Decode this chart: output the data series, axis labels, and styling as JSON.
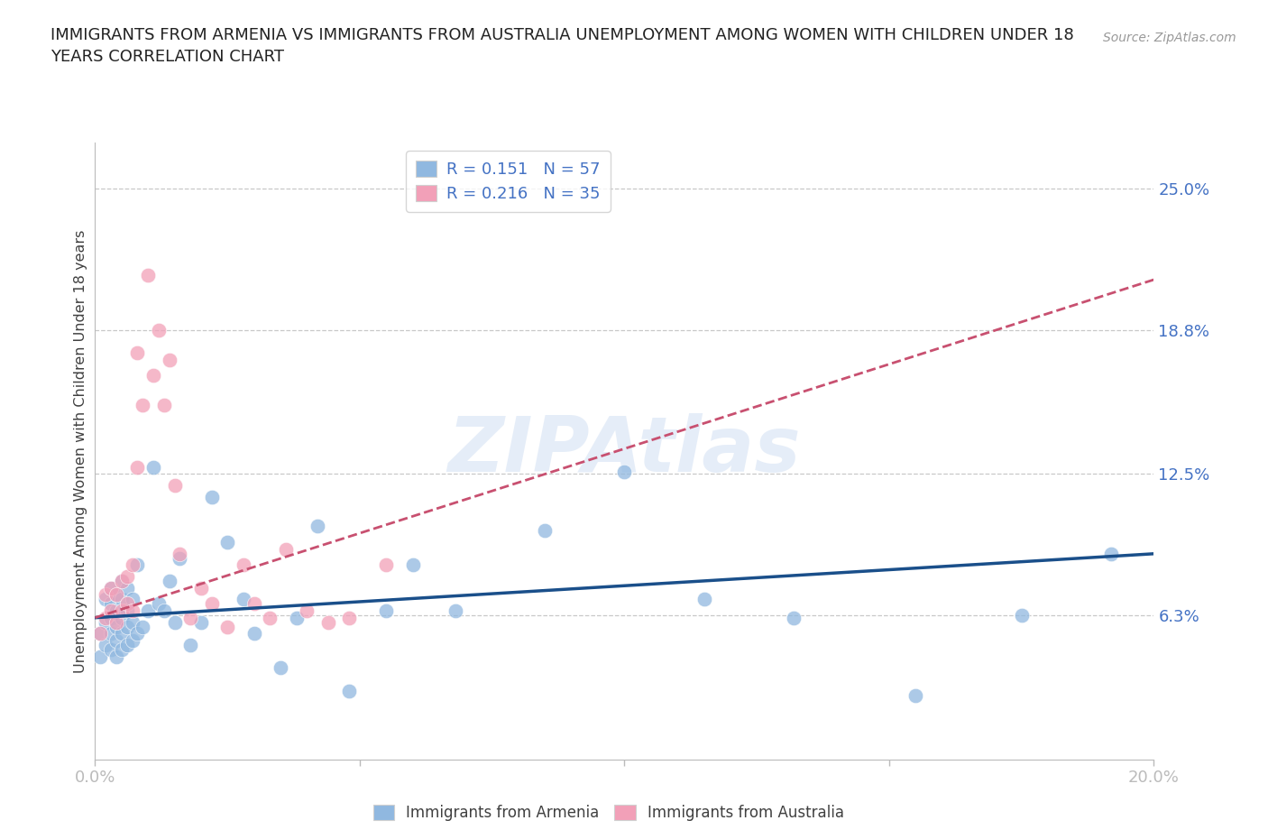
{
  "title_line1": "IMMIGRANTS FROM ARMENIA VS IMMIGRANTS FROM AUSTRALIA UNEMPLOYMENT AMONG WOMEN WITH CHILDREN UNDER 18",
  "title_line2": "YEARS CORRELATION CHART",
  "source": "Source: ZipAtlas.com",
  "ylabel": "Unemployment Among Women with Children Under 18 years",
  "xlim": [
    0.0,
    0.2
  ],
  "ylim": [
    0.0,
    0.27
  ],
  "ytick_vals": [
    0.063,
    0.125,
    0.188,
    0.25
  ],
  "ytick_labels": [
    "6.3%",
    "12.5%",
    "18.8%",
    "25.0%"
  ],
  "xtick_vals": [
    0.0,
    0.05,
    0.1,
    0.15,
    0.2
  ],
  "xtick_labels": [
    "0.0%",
    "",
    "",
    "",
    "20.0%"
  ],
  "watermark": "ZIPAtlas",
  "legend_r1": "R = 0.151   N = 57",
  "legend_r2": "R = 0.216   N = 35",
  "color_armenia": "#90B8E0",
  "color_australia": "#F2A0B8",
  "color_trend_armenia": "#1A4F8A",
  "color_trend_australia": "#C85070",
  "color_blue": "#4472C4",
  "color_text": "#404040",
  "color_grid": "#C8C8C8",
  "armenia_x": [
    0.001,
    0.001,
    0.002,
    0.002,
    0.002,
    0.003,
    0.003,
    0.003,
    0.003,
    0.003,
    0.004,
    0.004,
    0.004,
    0.004,
    0.004,
    0.005,
    0.005,
    0.005,
    0.005,
    0.005,
    0.006,
    0.006,
    0.006,
    0.006,
    0.007,
    0.007,
    0.007,
    0.008,
    0.008,
    0.009,
    0.01,
    0.011,
    0.012,
    0.013,
    0.014,
    0.015,
    0.016,
    0.018,
    0.02,
    0.022,
    0.025,
    0.028,
    0.03,
    0.035,
    0.038,
    0.042,
    0.048,
    0.055,
    0.06,
    0.068,
    0.085,
    0.1,
    0.115,
    0.132,
    0.155,
    0.175,
    0.192
  ],
  "armenia_y": [
    0.055,
    0.045,
    0.05,
    0.06,
    0.07,
    0.048,
    0.055,
    0.062,
    0.068,
    0.075,
    0.045,
    0.052,
    0.058,
    0.065,
    0.072,
    0.048,
    0.055,
    0.062,
    0.07,
    0.078,
    0.05,
    0.058,
    0.065,
    0.075,
    0.052,
    0.06,
    0.07,
    0.055,
    0.085,
    0.058,
    0.065,
    0.128,
    0.068,
    0.065,
    0.078,
    0.06,
    0.088,
    0.05,
    0.06,
    0.115,
    0.095,
    0.07,
    0.055,
    0.04,
    0.062,
    0.102,
    0.03,
    0.065,
    0.085,
    0.065,
    0.1,
    0.126,
    0.07,
    0.062,
    0.028,
    0.063,
    0.09
  ],
  "australia_x": [
    0.001,
    0.002,
    0.002,
    0.003,
    0.003,
    0.004,
    0.004,
    0.005,
    0.005,
    0.006,
    0.006,
    0.007,
    0.007,
    0.008,
    0.008,
    0.009,
    0.01,
    0.011,
    0.012,
    0.013,
    0.014,
    0.015,
    0.016,
    0.018,
    0.02,
    0.022,
    0.025,
    0.028,
    0.03,
    0.033,
    0.036,
    0.04,
    0.044,
    0.048,
    0.055
  ],
  "australia_y": [
    0.055,
    0.062,
    0.072,
    0.065,
    0.075,
    0.06,
    0.072,
    0.065,
    0.078,
    0.068,
    0.08,
    0.065,
    0.085,
    0.128,
    0.178,
    0.155,
    0.212,
    0.168,
    0.188,
    0.155,
    0.175,
    0.12,
    0.09,
    0.062,
    0.075,
    0.068,
    0.058,
    0.085,
    0.068,
    0.062,
    0.092,
    0.065,
    0.06,
    0.062,
    0.085
  ],
  "trend_armenia_x0": 0.0,
  "trend_armenia_x1": 0.2,
  "trend_armenia_y0": 0.062,
  "trend_armenia_y1": 0.09,
  "trend_australia_x0": 0.0,
  "trend_australia_x1": 0.2,
  "trend_australia_y0": 0.062,
  "trend_australia_y1": 0.21
}
